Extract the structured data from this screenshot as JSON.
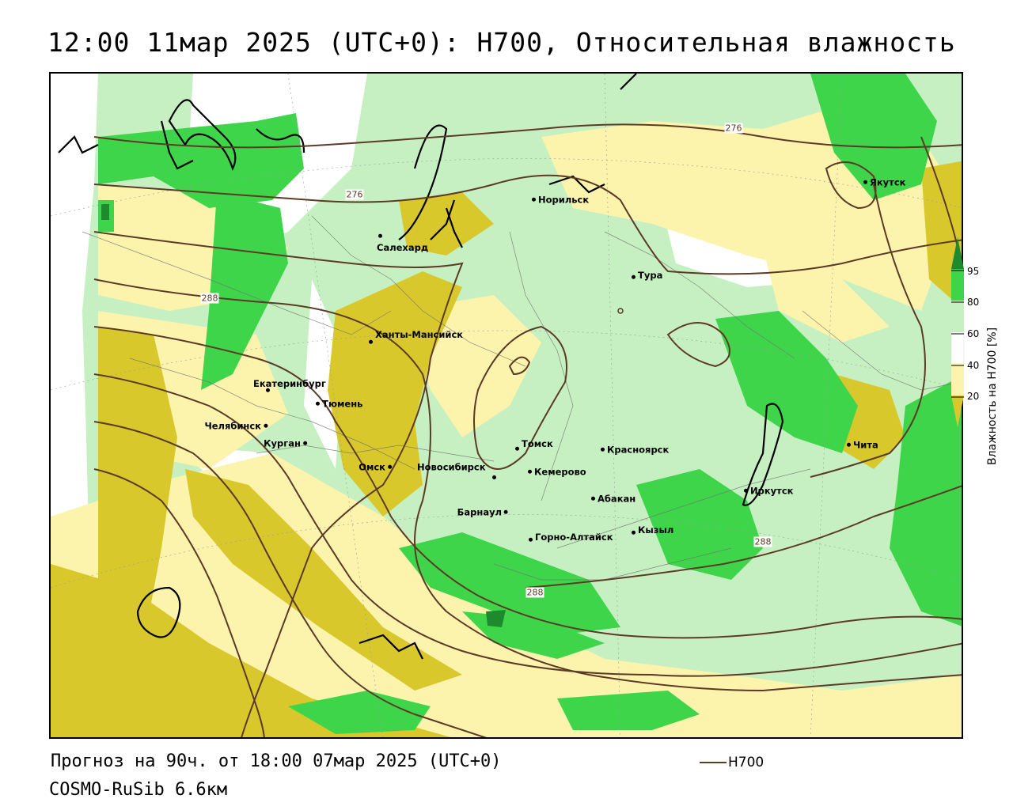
{
  "title": "12:00 11мар 2025 (UTC+0): H700, Относительная влажность",
  "forecast_text": "Прогноз на 90ч. от 18:00 07мар 2025 (UTC+0)",
  "model_text": "COSMO-RuSib 6.6км",
  "line_legend": {
    "label": "H700",
    "color": "#5b3a26"
  },
  "colorbar": {
    "title": "Влажность на H700 [%]",
    "ticks": [
      "95",
      "80",
      "60",
      "40",
      "20"
    ],
    "colors": {
      "dark_green": "#1e8a2e",
      "green": "#3fd54a",
      "light_green": "#c6f0c2",
      "pale_yellow": "#fcf3ad",
      "olive": "#d9c82b",
      "white": "#ffffff"
    }
  },
  "isohypse_labels": [
    "276",
    "276",
    "288",
    "288",
    "288"
  ],
  "cities": [
    {
      "name": "Якутск"
    },
    {
      "name": "Норильск"
    },
    {
      "name": "Салехард"
    },
    {
      "name": "Тура"
    },
    {
      "name": "Ханты-Мансийск"
    },
    {
      "name": "Екатеринбург"
    },
    {
      "name": "Тюмень"
    },
    {
      "name": "Челябинск"
    },
    {
      "name": "Курган"
    },
    {
      "name": "Омск"
    },
    {
      "name": "Новосибирск"
    },
    {
      "name": "Томск"
    },
    {
      "name": "Красноярск"
    },
    {
      "name": "Кемерово"
    },
    {
      "name": "Абакан"
    },
    {
      "name": "Барнаул"
    },
    {
      "name": "Горно-Алтайск"
    },
    {
      "name": "Кызыл"
    },
    {
      "name": "Иркутск"
    },
    {
      "name": "Чита"
    }
  ]
}
